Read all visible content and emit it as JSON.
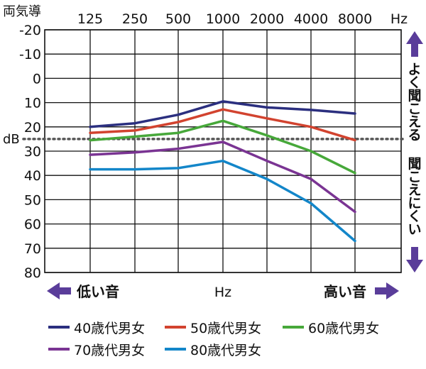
{
  "chart_data": {
    "type": "line",
    "title": "",
    "ylabel": "dB",
    "ylabel_top": "両気導",
    "xlabel": "Hz",
    "x_unit_top": "Hz",
    "x": [
      "125",
      "250",
      "500",
      "1000",
      "2000",
      "4000",
      "8000"
    ],
    "yticks": [
      "-20",
      "-10",
      "0",
      "10",
      "20",
      "30",
      "40",
      "50",
      "60",
      "70",
      "80"
    ],
    "ylim": [
      -20,
      80
    ],
    "y_inverted": true,
    "reference_line": {
      "y": 25,
      "style": "dotted"
    },
    "series": [
      {
        "name": "40歳代男女",
        "color": "#2b2f7f",
        "values": [
          20,
          18.5,
          15,
          9.5,
          12,
          13,
          14.5
        ]
      },
      {
        "name": "50歳代男女",
        "color": "#d2432f",
        "values": [
          22.5,
          21.5,
          18,
          12.8,
          16.5,
          20,
          25.5
        ]
      },
      {
        "name": "60歳代男女",
        "color": "#47a83a",
        "values": [
          25.5,
          24,
          22.5,
          17.5,
          23.5,
          30,
          39
        ]
      },
      {
        "name": "70歳代男女",
        "color": "#7a3493",
        "values": [
          31.5,
          30.5,
          29,
          26.2,
          34,
          41.5,
          55
        ]
      },
      {
        "name": "80歳代男女",
        "color": "#1386c9",
        "values": [
          37.5,
          37.5,
          37,
          34,
          41.5,
          51.5,
          67
        ]
      }
    ],
    "annotations": {
      "right_upper": "よく聞こえる",
      "right_lower": "聞こえにくい",
      "bottom_left": "低い音",
      "bottom_right": "高い音",
      "bottom_center": "Hz"
    },
    "arrow_color": "#5a3d9a",
    "grid": true
  }
}
